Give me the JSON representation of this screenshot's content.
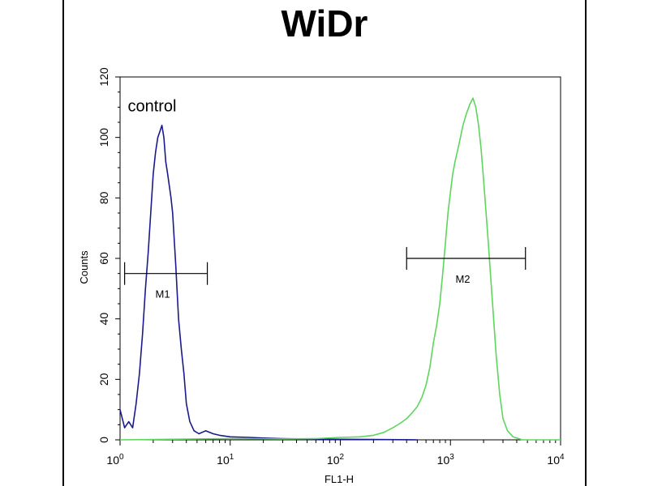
{
  "title": "WiDr",
  "chart_data": {
    "type": "line",
    "xscale": "log",
    "xlim": [
      1,
      10000
    ],
    "ylim": [
      0,
      120
    ],
    "xlabel": "FL1-H",
    "ylabel": "Counts",
    "x_tick_labels": [
      {
        "base": "10",
        "exp": "0",
        "value": 1
      },
      {
        "base": "10",
        "exp": "1",
        "value": 10
      },
      {
        "base": "10",
        "exp": "2",
        "value": 100
      },
      {
        "base": "10",
        "exp": "3",
        "value": 1000
      },
      {
        "base": "10",
        "exp": "4",
        "value": 10000
      }
    ],
    "y_ticks": [
      0,
      20,
      40,
      60,
      80,
      100,
      120
    ],
    "series": [
      {
        "name": "control",
        "color": "#1a1a8c",
        "points": [
          [
            1.0,
            10
          ],
          [
            1.1,
            4
          ],
          [
            1.2,
            6
          ],
          [
            1.3,
            4
          ],
          [
            1.4,
            12
          ],
          [
            1.5,
            22
          ],
          [
            1.6,
            35
          ],
          [
            1.7,
            50
          ],
          [
            1.8,
            62
          ],
          [
            1.9,
            75
          ],
          [
            2.0,
            88
          ],
          [
            2.1,
            95
          ],
          [
            2.2,
            100
          ],
          [
            2.3,
            102
          ],
          [
            2.4,
            104
          ],
          [
            2.5,
            100
          ],
          [
            2.6,
            92
          ],
          [
            2.7,
            88
          ],
          [
            2.8,
            84
          ],
          [
            2.9,
            80
          ],
          [
            3.0,
            75
          ],
          [
            3.2,
            58
          ],
          [
            3.4,
            40
          ],
          [
            3.6,
            30
          ],
          [
            3.8,
            22
          ],
          [
            4.0,
            12
          ],
          [
            4.3,
            6
          ],
          [
            4.7,
            3
          ],
          [
            5.2,
            2
          ],
          [
            6.0,
            3
          ],
          [
            7.0,
            2
          ],
          [
            8.0,
            1.5
          ],
          [
            10,
            1
          ],
          [
            15,
            0.8
          ],
          [
            20,
            0.6
          ],
          [
            30,
            0.4
          ],
          [
            50,
            0.3
          ],
          [
            100,
            0.2
          ],
          [
            200,
            0.1
          ],
          [
            500,
            0
          ]
        ]
      },
      {
        "name": "",
        "color": "#5ed55e",
        "points": [
          [
            1.0,
            0
          ],
          [
            10,
            0.4
          ],
          [
            30,
            0.3
          ],
          [
            60,
            0.4
          ],
          [
            100,
            0.8
          ],
          [
            150,
            1
          ],
          [
            200,
            1.5
          ],
          [
            250,
            2.5
          ],
          [
            300,
            4
          ],
          [
            350,
            5.5
          ],
          [
            400,
            7
          ],
          [
            450,
            9
          ],
          [
            500,
            11
          ],
          [
            550,
            14
          ],
          [
            600,
            18
          ],
          [
            650,
            24
          ],
          [
            700,
            32
          ],
          [
            750,
            38
          ],
          [
            800,
            45
          ],
          [
            850,
            55
          ],
          [
            900,
            65
          ],
          [
            950,
            75
          ],
          [
            1000,
            82
          ],
          [
            1050,
            88
          ],
          [
            1100,
            92
          ],
          [
            1200,
            98
          ],
          [
            1300,
            104
          ],
          [
            1400,
            108
          ],
          [
            1500,
            111
          ],
          [
            1600,
            113
          ],
          [
            1700,
            110
          ],
          [
            1800,
            104
          ],
          [
            1900,
            96
          ],
          [
            2000,
            86
          ],
          [
            2200,
            66
          ],
          [
            2400,
            46
          ],
          [
            2600,
            28
          ],
          [
            2800,
            15
          ],
          [
            3000,
            7
          ],
          [
            3300,
            3
          ],
          [
            3700,
            1
          ],
          [
            4500,
            0
          ],
          [
            10000,
            0
          ]
        ]
      }
    ],
    "markers": [
      {
        "label": "M1",
        "x_start": 1.1,
        "x_end": 6.2,
        "y": 55
      },
      {
        "label": "M2",
        "x_start": 400,
        "x_end": 4800,
        "y": 60
      }
    ],
    "annotations": [
      {
        "text": "control",
        "x": 1.3,
        "y": 110
      }
    ],
    "grid": false,
    "legend": "none"
  }
}
